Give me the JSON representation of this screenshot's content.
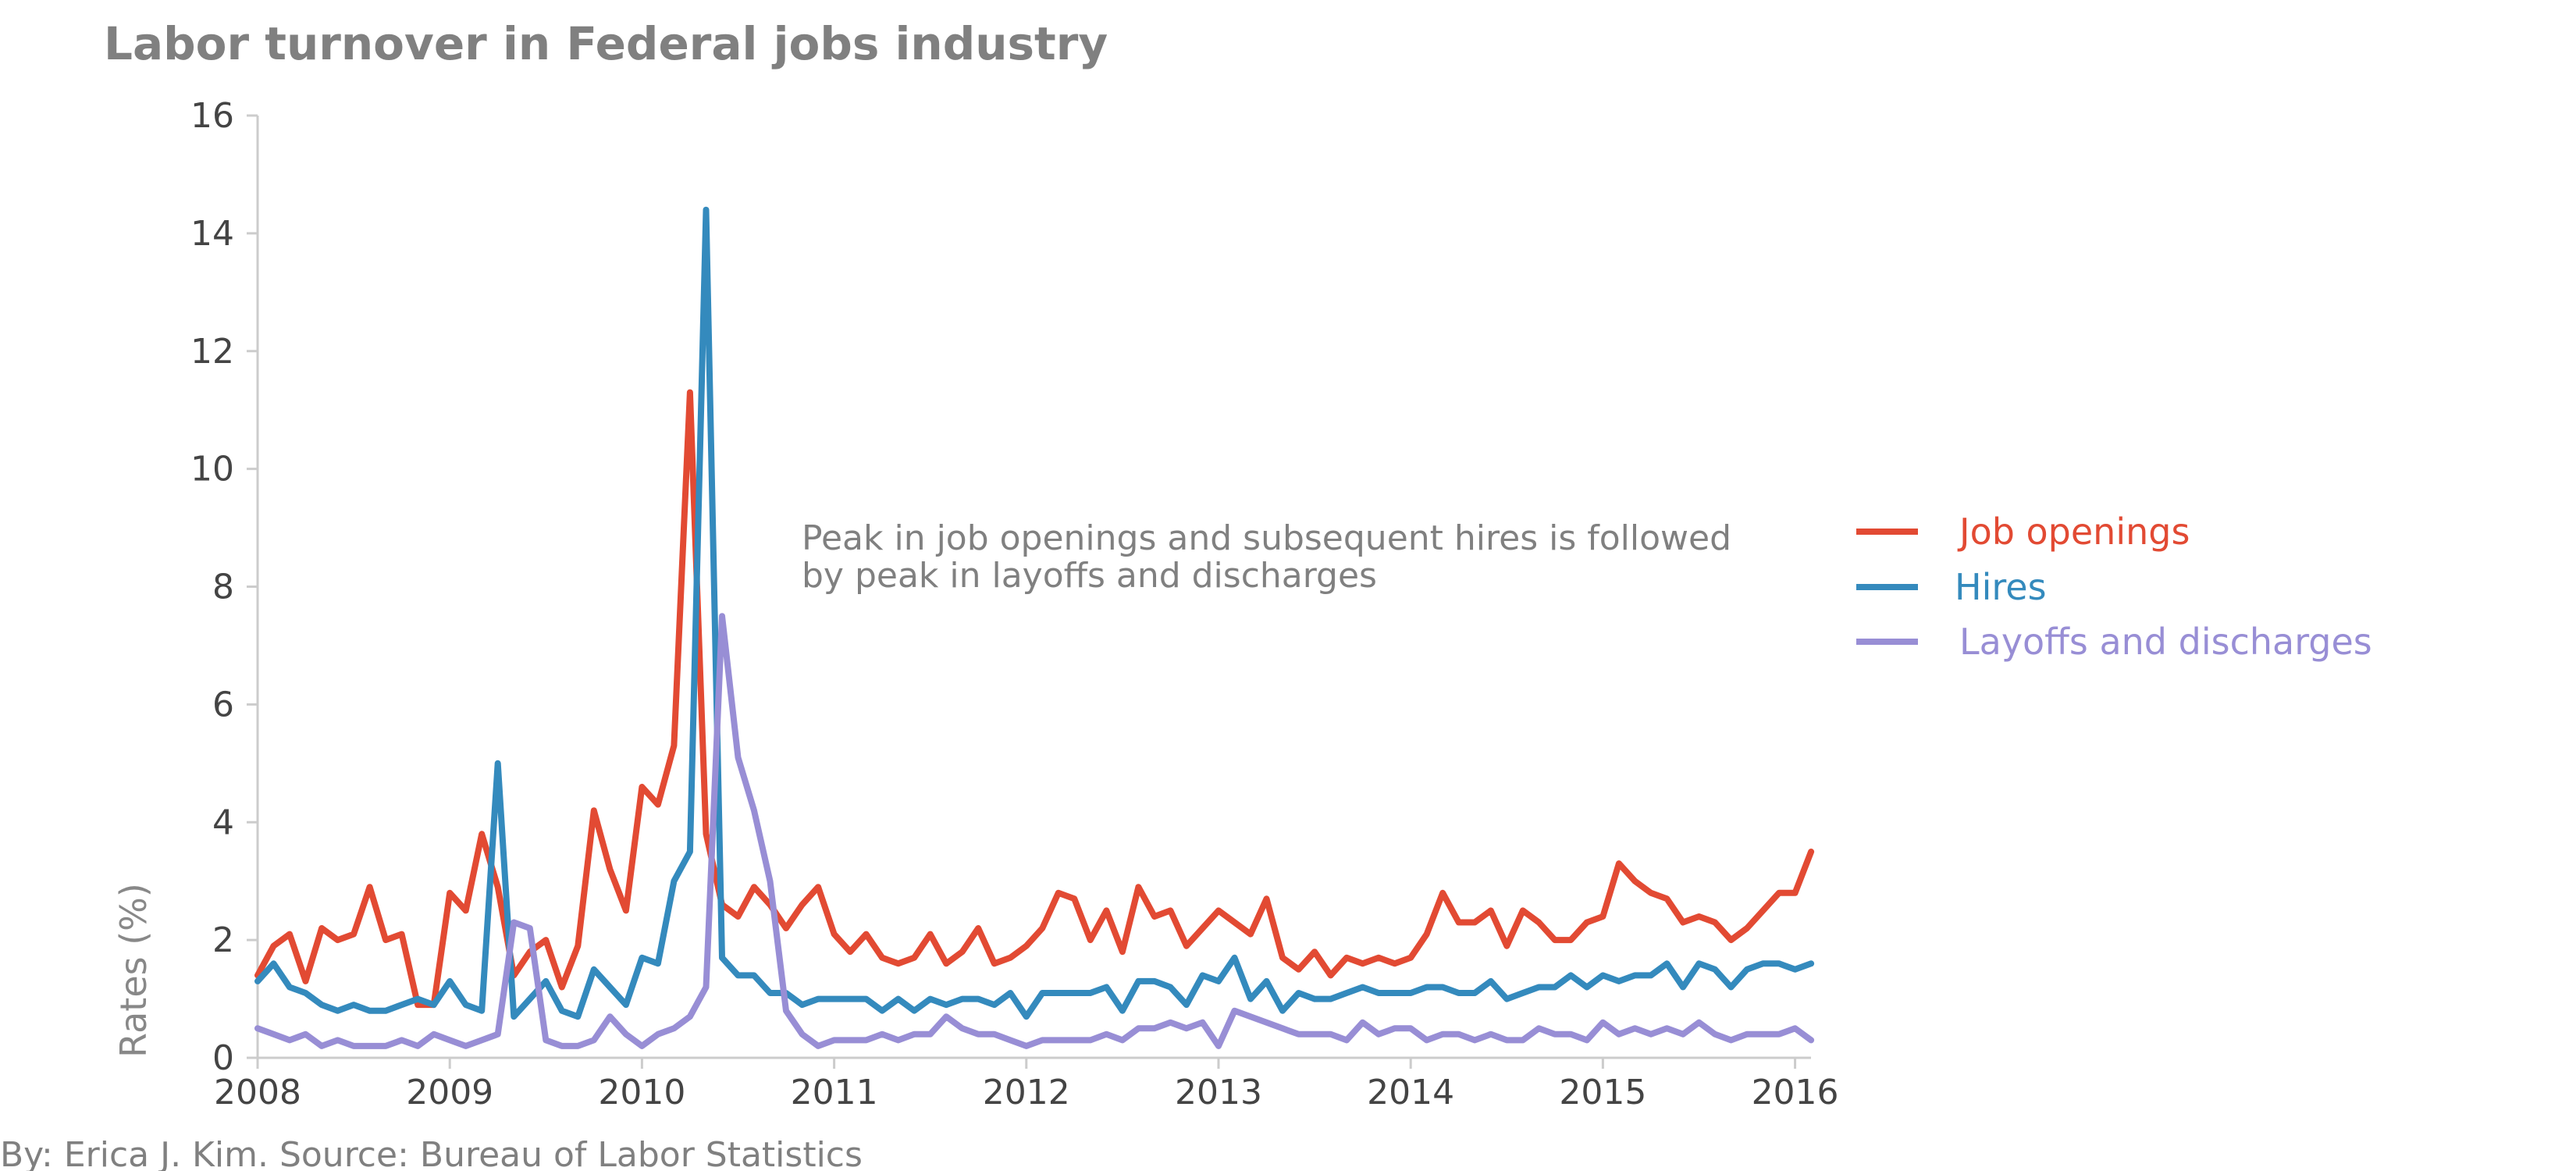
{
  "title": "Labor turnover in Federal jobs industry",
  "credit": "By: Erica J. Kim. Source: Bureau of Labor Statistics",
  "annotation": [
    "Peak in job openings and subsequent hires is followed",
    "by peak in layoffs and discharges"
  ],
  "colors": {
    "job_openings": "#E24A33",
    "hires": "#348ABD",
    "layoffs": "#988ED5",
    "axis": "#CCCCCC",
    "text": "#444444",
    "muted": "#808080"
  },
  "chart_data": {
    "type": "line",
    "ylabel": "Rates (%)",
    "xlabel": "",
    "xlim": [
      2008,
      2016.083
    ],
    "ylim": [
      0,
      16
    ],
    "x_ticks": [
      "2008",
      "2009",
      "2010",
      "2011",
      "2012",
      "2013",
      "2014",
      "2015",
      "2016"
    ],
    "y_ticks": [
      "0",
      "2",
      "4",
      "6",
      "8",
      "10",
      "12",
      "14",
      "16"
    ],
    "grid": false,
    "legend_position": "right",
    "x_start": "2008-01",
    "x_step": "monthly",
    "series": [
      {
        "name": "Job openings",
        "color": "#E24A33",
        "values": [
          1.4,
          1.9,
          2.1,
          1.3,
          2.2,
          2.0,
          2.1,
          2.9,
          2.0,
          2.1,
          0.9,
          0.9,
          2.8,
          2.5,
          3.8,
          2.9,
          1.4,
          1.8,
          2.0,
          1.2,
          1.9,
          4.2,
          3.2,
          2.5,
          4.6,
          4.3,
          5.3,
          11.3,
          3.8,
          2.6,
          2.4,
          2.9,
          2.6,
          2.2,
          2.6,
          2.9,
          2.1,
          1.8,
          2.1,
          1.7,
          1.6,
          1.7,
          2.1,
          1.6,
          1.8,
          2.2,
          1.6,
          1.7,
          1.9,
          2.2,
          2.8,
          2.7,
          2.0,
          2.5,
          1.8,
          2.9,
          2.4,
          2.5,
          1.9,
          2.2,
          2.5,
          2.3,
          2.1,
          2.7,
          1.7,
          1.5,
          1.8,
          1.4,
          1.7,
          1.6,
          1.7,
          1.6,
          1.7,
          2.1,
          2.8,
          2.3,
          2.3,
          2.5,
          1.9,
          2.5,
          2.3,
          2.0,
          2.0,
          2.3,
          2.4,
          3.3,
          3.0,
          2.8,
          2.7,
          2.3,
          2.4,
          2.3,
          2.0,
          2.2,
          2.5,
          2.8,
          2.8,
          3.5
        ]
      },
      {
        "name": "Hires",
        "color": "#348ABD",
        "values": [
          1.3,
          1.6,
          1.2,
          1.1,
          0.9,
          0.8,
          0.9,
          0.8,
          0.8,
          0.9,
          1.0,
          0.9,
          1.3,
          0.9,
          0.8,
          5.0,
          0.7,
          1.0,
          1.3,
          0.8,
          0.7,
          1.5,
          1.2,
          0.9,
          1.7,
          1.6,
          3.0,
          3.5,
          14.4,
          1.7,
          1.4,
          1.4,
          1.1,
          1.1,
          0.9,
          1.0,
          1.0,
          1.0,
          1.0,
          0.8,
          1.0,
          0.8,
          1.0,
          0.9,
          1.0,
          1.0,
          0.9,
          1.1,
          0.7,
          1.1,
          1.1,
          1.1,
          1.1,
          1.2,
          0.8,
          1.3,
          1.3,
          1.2,
          0.9,
          1.4,
          1.3,
          1.7,
          1.0,
          1.3,
          0.8,
          1.1,
          1.0,
          1.0,
          1.1,
          1.2,
          1.1,
          1.1,
          1.1,
          1.2,
          1.2,
          1.1,
          1.1,
          1.3,
          1.0,
          1.1,
          1.2,
          1.2,
          1.4,
          1.2,
          1.4,
          1.3,
          1.4,
          1.4,
          1.6,
          1.2,
          1.6,
          1.5,
          1.2,
          1.5,
          1.6,
          1.6,
          1.5,
          1.6
        ]
      },
      {
        "name": "Layoffs and discharges",
        "color": "#988ED5",
        "values": [
          0.5,
          0.4,
          0.3,
          0.4,
          0.2,
          0.3,
          0.2,
          0.2,
          0.2,
          0.3,
          0.2,
          0.4,
          0.3,
          0.2,
          0.3,
          0.4,
          2.3,
          2.2,
          0.3,
          0.2,
          0.2,
          0.3,
          0.7,
          0.4,
          0.2,
          0.4,
          0.5,
          0.7,
          1.2,
          7.5,
          5.1,
          4.2,
          3.0,
          0.8,
          0.4,
          0.2,
          0.3,
          0.3,
          0.3,
          0.4,
          0.3,
          0.4,
          0.4,
          0.7,
          0.5,
          0.4,
          0.4,
          0.3,
          0.2,
          0.3,
          0.3,
          0.3,
          0.3,
          0.4,
          0.3,
          0.5,
          0.5,
          0.6,
          0.5,
          0.6,
          0.2,
          0.8,
          0.7,
          0.6,
          0.5,
          0.4,
          0.4,
          0.4,
          0.3,
          0.6,
          0.4,
          0.5,
          0.5,
          0.3,
          0.4,
          0.4,
          0.3,
          0.4,
          0.3,
          0.3,
          0.5,
          0.4,
          0.4,
          0.3,
          0.6,
          0.4,
          0.5,
          0.4,
          0.5,
          0.4,
          0.6,
          0.4,
          0.3,
          0.4,
          0.4,
          0.4,
          0.5,
          0.3
        ]
      }
    ]
  }
}
